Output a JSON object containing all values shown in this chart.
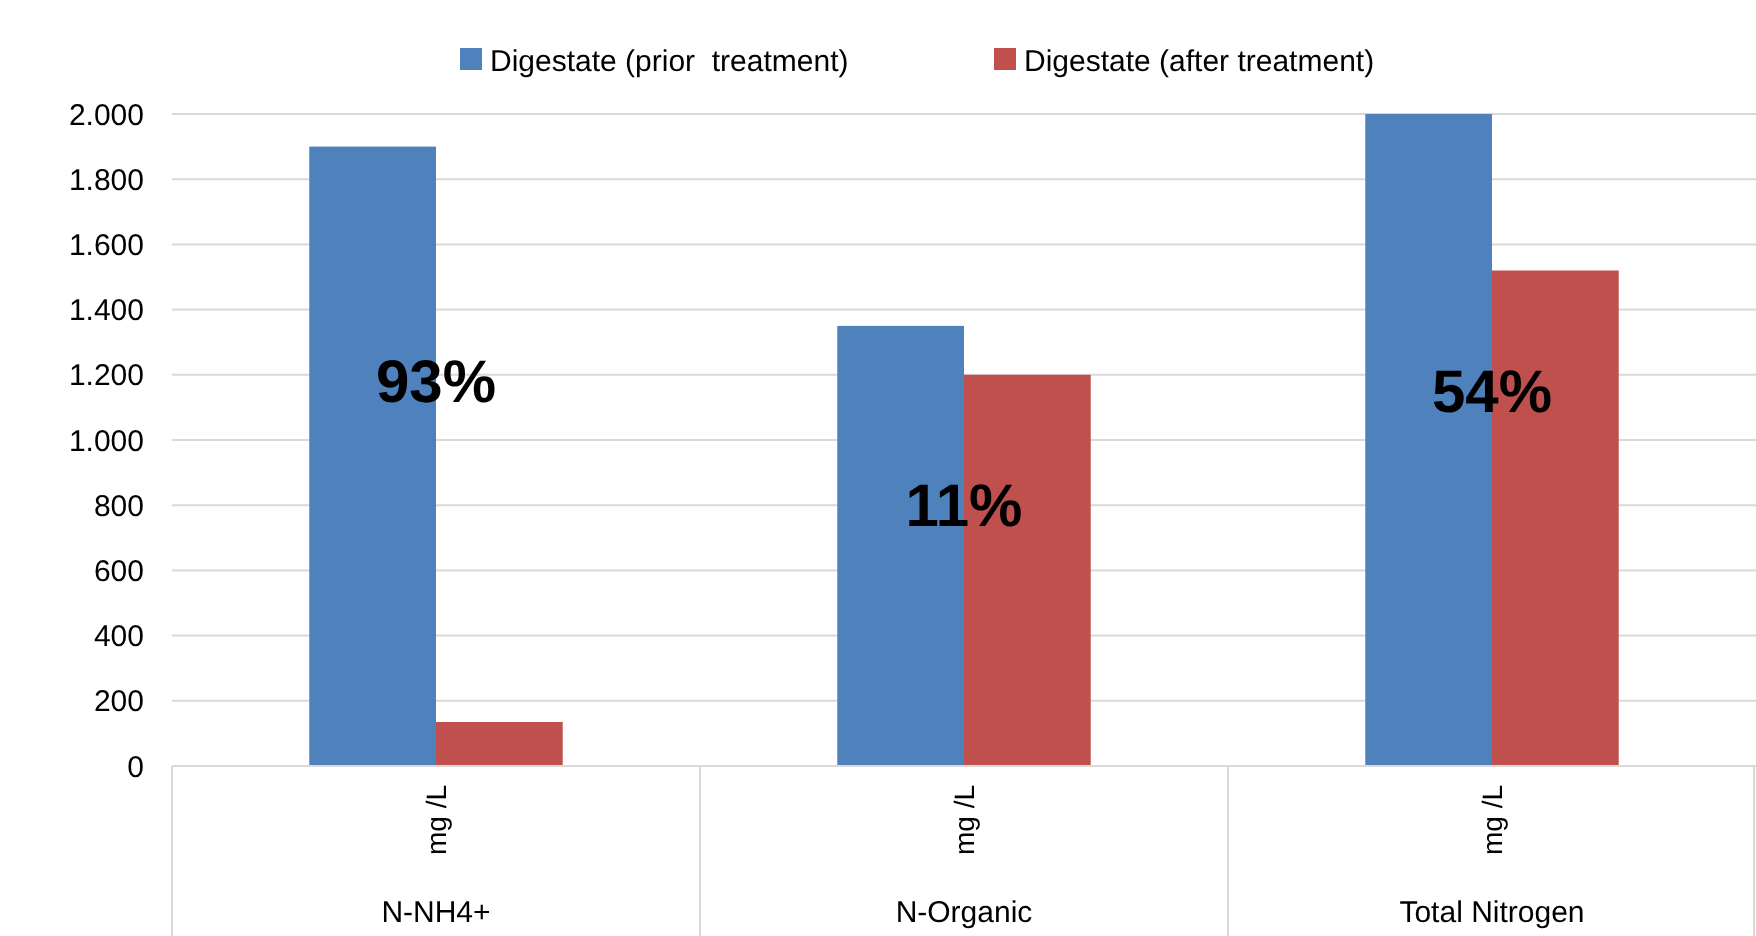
{
  "chart_data": {
    "type": "bar",
    "categories": [
      "N-NH4+",
      "N-Organic",
      "Total Nitrogen"
    ],
    "series": [
      {
        "name": "Digestate (prior  treatment)",
        "color": "#4f81bd",
        "values": [
          1900,
          1350,
          2000
        ]
      },
      {
        "name": "Digestate (after treatment)",
        "color": "#c0504d",
        "values": [
          135,
          1200,
          1520
        ]
      }
    ],
    "ylim": [
      0,
      2000
    ],
    "yticks": [
      0,
      200,
      400,
      600,
      800,
      {
        "value": 1000,
        "label": "1.000"
      },
      {
        "value": 1200,
        "label": "1.200"
      },
      {
        "value": 1400,
        "label": "1.400"
      },
      {
        "value": 1600,
        "label": "1.600"
      },
      {
        "value": 1800,
        "label": "1.800"
      },
      {
        "value": 2000,
        "label": "2.000"
      }
    ],
    "grid": "y",
    "legend": "top",
    "annotations": [
      "mg /L",
      "mg /L",
      "mg /L",
      {
        "text": "93%",
        "x": "N-NH4+",
        "y": 1180
      },
      {
        "text": "11%",
        "x": "N-Organic",
        "y": 800
      },
      {
        "text": "54%",
        "x": "Total Nitrogen",
        "y": 1150
      }
    ]
  }
}
